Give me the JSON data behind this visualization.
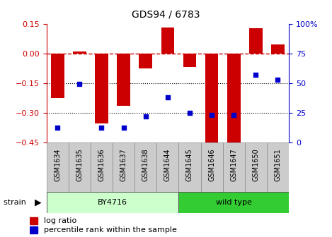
{
  "title": "GDS94 / 6783",
  "samples": [
    "GSM1634",
    "GSM1635",
    "GSM1636",
    "GSM1637",
    "GSM1638",
    "GSM1644",
    "GSM1645",
    "GSM1646",
    "GSM1647",
    "GSM1650",
    "GSM1651"
  ],
  "log_ratio": [
    -0.225,
    0.01,
    -0.355,
    -0.265,
    -0.075,
    0.13,
    -0.07,
    -0.46,
    -0.46,
    0.128,
    0.045
  ],
  "percentile_rank": [
    12,
    49,
    12,
    12,
    22,
    38,
    25,
    23,
    23,
    57,
    53
  ],
  "ylim_left": [
    -0.45,
    0.15
  ],
  "ylim_right": [
    0,
    100
  ],
  "yticks_left": [
    -0.45,
    -0.3,
    -0.15,
    0.0,
    0.15
  ],
  "yticks_right": [
    0,
    25,
    50,
    75,
    100
  ],
  "hlines": [
    -0.15,
    -0.3
  ],
  "zero_line": 0.0,
  "bar_color": "#cc0000",
  "dot_color": "#0000cc",
  "bar_width": 0.6,
  "group1_label": "BY4716",
  "group2_label": "wild type",
  "group1_color": "#ccffcc",
  "group2_color": "#33cc33",
  "strain_label": "strain",
  "legend_bar_label": "log ratio",
  "legend_dot_label": "percentile rank within the sample",
  "n_group1": 6,
  "n_group2": 5,
  "zero_line_color": "#cc0000",
  "zero_line_style": "--",
  "hline_color": "#000000",
  "hline_style": ":",
  "left_tick_color": "#cc0000",
  "right_tick_color": "#0000cc",
  "tick_cell_color": "#cccccc",
  "tick_cell_edge": "#888888"
}
